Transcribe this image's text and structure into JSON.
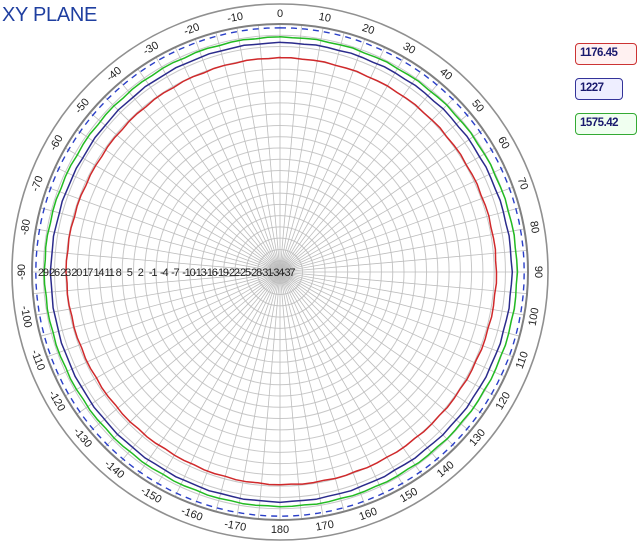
{
  "chart_data": {
    "type": "polar-line",
    "title": "XY PLANE",
    "angle_tick_labels": [
      "0",
      "10",
      "20",
      "30",
      "40",
      "50",
      "60",
      "70",
      "80",
      "90",
      "100",
      "110",
      "120",
      "130",
      "140",
      "150",
      "160",
      "170",
      "180",
      "-170",
      "-160",
      "-150",
      "-140",
      "-130",
      "-120",
      "-110",
      "-100",
      "-90",
      "-80",
      "-70",
      "-60",
      "-50",
      "-40",
      "-30",
      "-20",
      "-10"
    ],
    "radial_tick_labels": [
      "29",
      "26",
      "23",
      "20",
      "17",
      "14",
      "11",
      "8",
      "5",
      "2",
      "-1",
      "-4",
      "-7",
      "-10",
      "-13",
      "-16",
      "-19",
      "-22",
      "-25",
      "-28",
      "-31",
      "-34",
      "-37"
    ],
    "r_max": 29,
    "r_min": -37,
    "radial_step": 3,
    "angular_step_deg": 10,
    "grid": true,
    "legend_position": "right",
    "series": [
      {
        "name": "1176.45",
        "color": "#d0292b",
        "r": 20.0,
        "points": [
          [
            0,
            20.0
          ],
          [
            30,
            20.1
          ],
          [
            60,
            20.3
          ],
          [
            90,
            20.6
          ],
          [
            120,
            20.3
          ],
          [
            150,
            20.0
          ],
          [
            180,
            19.6
          ],
          [
            210,
            19.2
          ],
          [
            240,
            19.5
          ],
          [
            270,
            19.9
          ],
          [
            300,
            19.6
          ],
          [
            330,
            19.8
          ]
        ]
      },
      {
        "name": "1227",
        "color": "#2b2b8c",
        "r": 24.0,
        "points": [
          [
            0,
            24.0
          ],
          [
            30,
            24.2
          ],
          [
            60,
            24.4
          ],
          [
            90,
            24.7
          ],
          [
            120,
            24.4
          ],
          [
            150,
            24.0
          ],
          [
            180,
            24.2
          ],
          [
            210,
            24.0
          ],
          [
            240,
            24.1
          ],
          [
            270,
            24.0
          ],
          [
            300,
            23.7
          ],
          [
            330,
            23.9
          ]
        ]
      },
      {
        "name": "1575.42",
        "color": "#22bb22",
        "r": 25.5,
        "points": [
          [
            0,
            25.5
          ],
          [
            30,
            25.6
          ],
          [
            60,
            25.8
          ],
          [
            90,
            26.1
          ],
          [
            120,
            25.9
          ],
          [
            150,
            25.6
          ],
          [
            180,
            25.4
          ],
          [
            210,
            25.3
          ],
          [
            240,
            25.5
          ],
          [
            270,
            25.7
          ],
          [
            300,
            25.4
          ],
          [
            330,
            25.5
          ]
        ]
      },
      {
        "name": "",
        "color": "#2a3fc8",
        "style": "dashed",
        "r": 28,
        "points": [
          [
            0,
            28
          ],
          [
            90,
            28
          ],
          [
            180,
            28
          ],
          [
            270,
            28
          ]
        ]
      }
    ]
  },
  "legend": {
    "items": [
      {
        "label": "1176.45"
      },
      {
        "label": "1227"
      },
      {
        "label": "1575.42"
      }
    ]
  }
}
